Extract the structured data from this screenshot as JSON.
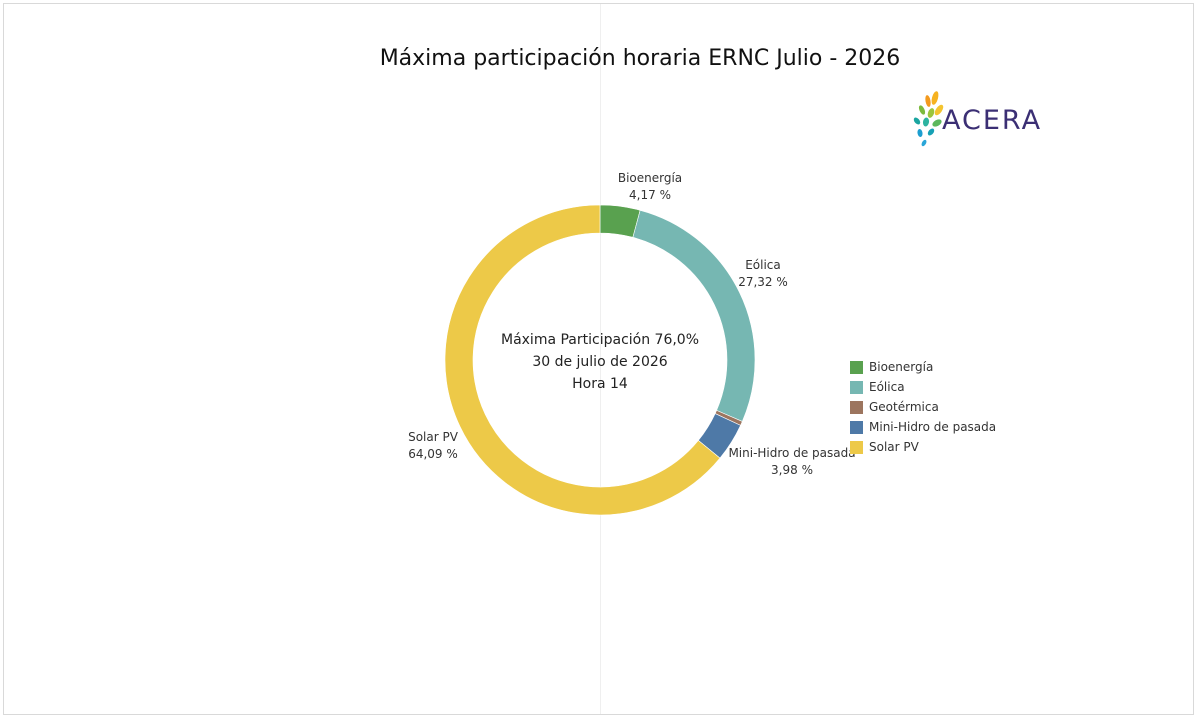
{
  "title": "Máxima participación horaria ERNC Julio - 2026",
  "logo": {
    "text": "ACERA"
  },
  "center_text": {
    "line1": "Máxima Participación  76,0%",
    "line2": "30 de julio de 2026",
    "line3": "Hora 14"
  },
  "chart_data": {
    "type": "pie",
    "donut": true,
    "title": "Máxima participación horaria ERNC Julio - 2026",
    "legend_position": "right",
    "slices": [
      {
        "name": "Bioenergía",
        "value": 4.17,
        "label": "4,17 %",
        "color": "#59a14f",
        "show_label": true
      },
      {
        "name": "Eólica",
        "value": 27.32,
        "label": "27,32 %",
        "color": "#76b7b2",
        "show_label": true
      },
      {
        "name": "Geotérmica",
        "value": 0.44,
        "label": "",
        "color": "#9c755f",
        "show_label": false
      },
      {
        "name": "Mini-Hidro de pasada",
        "value": 3.98,
        "label": "3,98 %",
        "color": "#4e79a7",
        "show_label": true
      },
      {
        "name": "Solar PV",
        "value": 64.09,
        "label": "64,09 %",
        "color": "#edc948",
        "show_label": true
      }
    ]
  },
  "legend": [
    {
      "label": "Bioenergía",
      "color": "#59a14f"
    },
    {
      "label": "Eólica",
      "color": "#76b7b2"
    },
    {
      "label": "Geotérmica",
      "color": "#9c755f"
    },
    {
      "label": "Mini-Hidro de pasada",
      "color": "#4e79a7"
    },
    {
      "label": "Solar PV",
      "color": "#edc948"
    }
  ]
}
